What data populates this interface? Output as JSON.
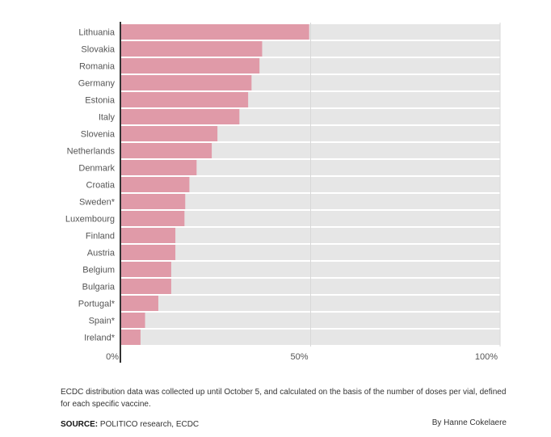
{
  "chart_data": {
    "type": "bar",
    "orientation": "horizontal",
    "categories": [
      "Lithuania",
      "Slovakia",
      "Romania",
      "Germany",
      "Estonia",
      "Italy",
      "Slovenia",
      "Netherlands",
      "Denmark",
      "Croatia",
      "Sweden*",
      "Luxembourg",
      "Finland",
      "Austria",
      "Belgium",
      "Bulgaria",
      "Portugal*",
      "Spain*",
      "Ireland*"
    ],
    "values": [
      49.6,
      37.2,
      36.5,
      34.4,
      33.5,
      31.2,
      25.4,
      23.9,
      19.9,
      18.0,
      16.9,
      16.7,
      14.3,
      14.3,
      13.2,
      13.2,
      9.8,
      6.3,
      5.1
    ],
    "xlim": [
      0,
      100
    ],
    "xticks": [
      0,
      50,
      100
    ],
    "xtick_labels": [
      "0%",
      "50%",
      "100%"
    ],
    "bar_color": "#e09aa8",
    "track_color": "#e6e6e6",
    "grid": true
  },
  "footer": {
    "note": "ECDC distribution data was collected up until October 5, and calculated on the basis of the number of doses per vial, defined for each specific vaccine.",
    "source_label": "SOURCE:",
    "source_text": " POLITICO research, ECDC",
    "byline": "By Hanne Cokelaere"
  }
}
